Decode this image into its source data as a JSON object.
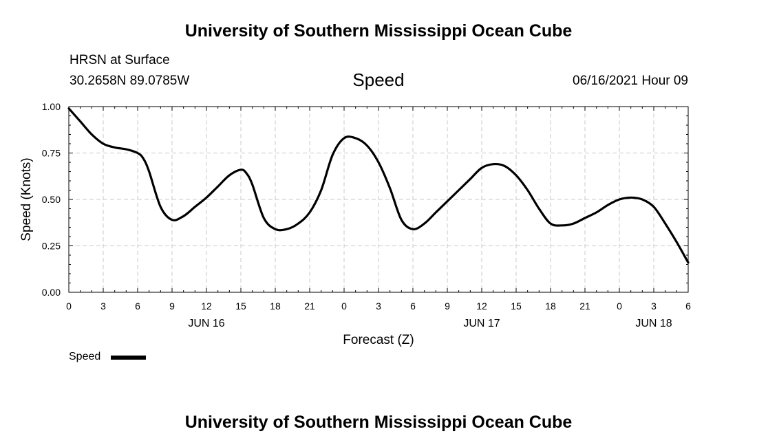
{
  "header": {
    "site_title": "University of Southern Mississippi Ocean Cube",
    "station": "HRSN at Surface",
    "coordinates": "30.2658N  89.0785W",
    "issued": "06/16/2021 Hour 09"
  },
  "footer": {
    "site_title": "University of Southern Mississippi Ocean Cube"
  },
  "chart_data": {
    "type": "line",
    "title": "Speed",
    "xlabel": "Forecast (Z)",
    "ylabel": "Speed (Knots)",
    "xlim": [
      0,
      54
    ],
    "ylim": [
      0,
      1
    ],
    "x_ticks": [
      0,
      3,
      6,
      9,
      12,
      15,
      18,
      21,
      24,
      27,
      30,
      33,
      36,
      39,
      42,
      45,
      48,
      51,
      54
    ],
    "x_tick_labels": [
      "0",
      "3",
      "6",
      "9",
      "12",
      "15",
      "18",
      "21",
      "0",
      "3",
      "6",
      "9",
      "12",
      "15",
      "18",
      "21",
      "0",
      "3",
      "6"
    ],
    "y_ticks": [
      0,
      0.25,
      0.5,
      0.75,
      1.0
    ],
    "y_tick_labels": [
      "0.00",
      "0.25",
      "0.50",
      "0.75",
      "1.00"
    ],
    "date_labels": [
      {
        "x": 12,
        "label": "JUN 16"
      },
      {
        "x": 36,
        "label": "JUN 17"
      },
      {
        "x": 51,
        "label": "JUN 18"
      }
    ],
    "grid": true,
    "legend": "bottom-left",
    "series": [
      {
        "name": "Speed",
        "color": "#000000",
        "x": [
          0,
          1,
          2,
          3,
          4,
          5,
          6,
          6.5,
          7,
          8,
          9,
          10,
          11,
          12,
          13,
          14,
          15,
          15.5,
          16,
          17,
          18,
          19,
          20,
          21,
          22,
          23,
          24,
          25,
          26,
          27,
          28,
          29,
          30,
          31,
          32,
          33,
          34,
          35,
          36,
          37,
          38,
          39,
          40,
          41,
          42,
          43,
          44,
          45,
          46,
          47,
          48,
          49,
          50,
          51,
          52,
          53,
          54
        ],
        "values": [
          0.99,
          0.92,
          0.85,
          0.8,
          0.78,
          0.77,
          0.75,
          0.72,
          0.65,
          0.46,
          0.39,
          0.41,
          0.46,
          0.51,
          0.57,
          0.63,
          0.66,
          0.64,
          0.58,
          0.4,
          0.34,
          0.34,
          0.37,
          0.43,
          0.55,
          0.74,
          0.83,
          0.83,
          0.79,
          0.7,
          0.56,
          0.39,
          0.34,
          0.37,
          0.43,
          0.49,
          0.55,
          0.61,
          0.67,
          0.69,
          0.68,
          0.63,
          0.55,
          0.45,
          0.37,
          0.36,
          0.37,
          0.4,
          0.43,
          0.47,
          0.5,
          0.51,
          0.5,
          0.46,
          0.37,
          0.27,
          0.16
        ]
      }
    ]
  }
}
